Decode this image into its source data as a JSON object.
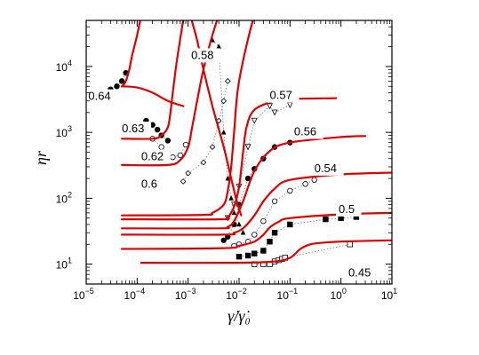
{
  "chart_data": {
    "type": "line",
    "x_scale": "log",
    "y_scale": "log",
    "xlim": [
      1e-05,
      10
    ],
    "ylim": [
      5,
      50000
    ],
    "grid": false,
    "xlabel": "γ̇/γ̇₀",
    "ylabel": "ηr",
    "x_ticks": [
      {
        "value": 1e-05,
        "label": "10",
        "exp": "−5"
      },
      {
        "value": 0.0001,
        "label": "10",
        "exp": "−4"
      },
      {
        "value": 0.001,
        "label": "10",
        "exp": "−3"
      },
      {
        "value": 0.01,
        "label": "10",
        "exp": "−2"
      },
      {
        "value": 0.1,
        "label": "10",
        "exp": "−1"
      },
      {
        "value": 1,
        "label": "10",
        "exp": "0"
      },
      {
        "value": 10,
        "label": "10",
        "exp": "1"
      }
    ],
    "y_ticks": [
      {
        "value": 10,
        "label": "10",
        "exp": "1"
      },
      {
        "value": 100,
        "label": "10",
        "exp": "2"
      },
      {
        "value": 1000,
        "label": "10",
        "exp": "3"
      },
      {
        "value": 10000,
        "label": "10",
        "exp": "4"
      }
    ],
    "model_color": "#e00000",
    "series": [
      {
        "name": "0.45",
        "color": "#e00000",
        "label_at": [
          1.4,
          6.5
        ],
        "x": [
          0.00012,
          0.01,
          0.05,
          0.1,
          0.16,
          0.25,
          0.4,
          1,
          10
        ],
        "y": [
          10.5,
          10.5,
          11,
          12.5,
          17,
          20,
          21,
          22,
          23
        ],
        "markers": {
          "symbol": "open-square",
          "x": [
            0.02,
            0.03,
            0.04,
            0.05,
            0.06,
            0.07,
            0.08,
            1.5
          ],
          "y": [
            10,
            10,
            10,
            11,
            11.5,
            12,
            12.5,
            20
          ]
        }
      },
      {
        "name": "0.5",
        "color": "#e00000",
        "label_at": [
          0.9,
          60
        ],
        "x": [
          5e-05,
          0.005,
          0.01,
          0.02,
          0.03,
          0.04,
          0.06,
          0.1,
          1,
          10
        ],
        "y": [
          17,
          17.5,
          19,
          22,
          28,
          36,
          44,
          50,
          57,
          60
        ],
        "markers": {
          "symbol": "filled-square",
          "x": [
            0.01,
            0.015,
            0.02,
            0.03,
            0.04,
            0.05,
            0.1,
            0.5,
            1,
            2
          ],
          "y": [
            13,
            13.5,
            14.5,
            16,
            22,
            30,
            40,
            48,
            50,
            52
          ]
        }
      },
      {
        "name": "0.54",
        "color": "#e00000",
        "label_at": [
          0.3,
          250
        ],
        "x": [
          5e-05,
          0.005,
          0.008,
          0.012,
          0.02,
          0.03,
          0.05,
          0.1,
          1,
          10
        ],
        "y": [
          28,
          28,
          30,
          35,
          55,
          90,
          140,
          190,
          230,
          245
        ],
        "markers": {
          "symbol": "open-circle",
          "x": [
            0.008,
            0.01,
            0.015,
            0.02,
            0.03,
            0.05,
            0.1,
            0.2,
            0.3
          ],
          "y": [
            19,
            20,
            22,
            28,
            45,
            90,
            130,
            165,
            190
          ]
        }
      },
      {
        "name": "0.56",
        "color": "#e00000",
        "label_at": [
          0.12,
          900
        ],
        "x": [
          5e-05,
          0.004,
          0.006,
          0.008,
          0.012,
          0.02,
          0.04,
          0.1,
          1,
          3
        ],
        "y": [
          35,
          35,
          37,
          45,
          90,
          260,
          520,
          700,
          850,
          880
        ],
        "markers": {
          "symbol": "filled-circle",
          "x": [
            0.005,
            0.006,
            0.008,
            0.01,
            0.015,
            0.02,
            0.03,
            0.05,
            0.1
          ],
          "y": [
            23,
            26,
            40,
            80,
            200,
            280,
            400,
            600,
            700
          ]
        }
      },
      {
        "name": "0.57",
        "color": "#e00000",
        "label_at": [
          0.04,
          3200
        ],
        "x": [
          5e-05,
          0.004,
          0.006,
          0.008,
          0.01,
          0.012,
          0.014,
          0.02,
          0.05,
          0.1,
          0.8
        ],
        "y": [
          48,
          48,
          52,
          75,
          150,
          500,
          1200,
          2200,
          3000,
          3200,
          3300
        ],
        "markers": {
          "symbol": "open-triangle-down",
          "x": [
            0.006,
            0.008,
            0.01,
            0.015,
            0.02,
            0.04,
            0.05,
            0.1
          ],
          "y": [
            50,
            80,
            150,
            600,
            1500,
            2500,
            2000,
            2600
          ]
        }
      },
      {
        "name": "0.58",
        "color": "#e00000",
        "label_at": [
          0.00115,
          13000
        ],
        "x": [
          0.0011,
          0.0015,
          0.002,
          0.003,
          0.005,
          0.007,
          0.009,
          0.011
        ],
        "y": [
          60000,
          25000,
          9000,
          2500,
          600,
          200,
          90,
          55
        ],
        "markers": {
          "symbol": "filled-triangle-up",
          "x": [
            0.003,
            0.004,
            0.005,
            0.006,
            0.007,
            0.008,
            0.01,
            0.012
          ],
          "y": [
            25000,
            20000,
            1000,
            200,
            100,
            60,
            40,
            30
          ]
        }
      },
      {
        "name": "0.6",
        "color": "#e00000",
        "label_at": [
          0.00012,
          145
        ],
        "x": [
          5e-05,
          0.002,
          0.003,
          0.005,
          0.006,
          0.007,
          0.008,
          0.01,
          0.02,
          0.04
        ],
        "y": [
          55,
          56,
          60,
          80,
          130,
          300,
          1000,
          6000,
          60000,
          200000
        ],
        "markers": {
          "symbol": "open-diamond",
          "x": [
            0.0008,
            0.001,
            0.002,
            0.003,
            0.004,
            0.005,
            0.006
          ],
          "y": [
            180,
            240,
            350,
            600,
            1500,
            3000,
            6000
          ]
        }
      },
      {
        "name": "0.62",
        "color": "#e00000",
        "label_at": [
          0.00012,
          380
        ],
        "x": [
          5e-05,
          0.0004,
          0.0007,
          0.001,
          0.0012,
          0.0015,
          0.002,
          0.003,
          0.005
        ],
        "y": [
          320,
          320,
          380,
          600,
          1200,
          3000,
          9000,
          30000,
          100000
        ],
        "markers": {
          "symbol": "open-circle",
          "x": [
            0.0002,
            0.0003,
            0.0004,
            0.0005,
            0.0007,
            0.0009
          ],
          "y": [
            800,
            600,
            500,
            420,
            450,
            650
          ]
        }
      },
      {
        "name": "0.63",
        "color": "#e00000",
        "label_at": [
          5e-05,
          1000
        ],
        "x": [
          5e-05,
          0.0002,
          0.0003,
          0.0004,
          0.00045,
          0.0005,
          0.0006,
          0.0008
        ],
        "y": [
          800,
          800,
          900,
          1200,
          2000,
          4000,
          12000,
          50000
        ],
        "markers": {
          "symbol": "filled-circle",
          "x": [
            0.00015,
            0.0002,
            0.00025,
            0.0003,
            0.0004
          ],
          "y": [
            1500,
            1300,
            1100,
            900,
            750
          ]
        }
      },
      {
        "name": "0.64",
        "color": "#e00000",
        "label_at": [
          1.1e-05,
          3100
        ],
        "x": [
          5e-05,
          5.3e-05,
          6e-05,
          7e-05,
          8e-05,
          0.0001,
          0.00013
        ],
        "y": [
          5000,
          5200,
          6000,
          9000,
          15000,
          30000,
          80000
        ],
        "markers": {
          "symbol": "filled-circle",
          "x": [
            3e-05,
            4e-05,
            5e-05,
            6e-05
          ],
          "y": [
            4500,
            5000,
            6000,
            8000
          ]
        }
      },
      {
        "name": "",
        "color": "#e00000",
        "x": [
          5e-05,
          0.0001,
          0.0002,
          0.0004,
          0.0008
        ],
        "y": [
          5000,
          4800,
          4000,
          3000,
          2500
        ]
      }
    ]
  }
}
